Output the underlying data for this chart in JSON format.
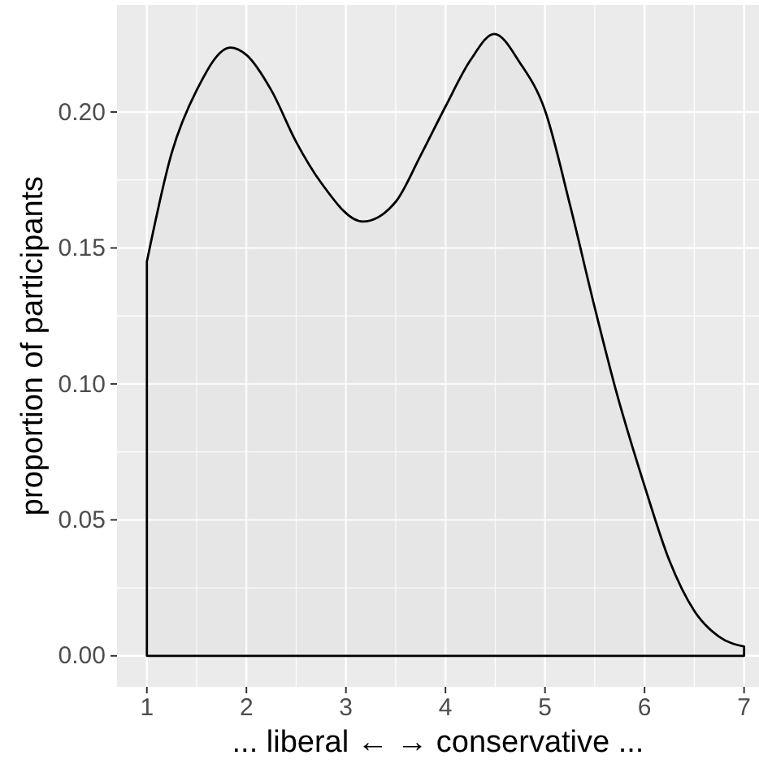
{
  "chart_data": {
    "type": "area",
    "xlabel": "... liberal ← → conservative ...",
    "ylabel": "proportion of participants",
    "x": [
      1,
      1.25,
      1.5,
      1.84,
      2,
      2.25,
      2.5,
      2.75,
      3.17,
      3.5,
      3.75,
      4,
      4.25,
      4.49,
      4.75,
      5,
      5.25,
      5.5,
      5.71,
      6,
      6.25,
      6.5,
      6.75,
      7
    ],
    "series": [
      {
        "color": "#000000",
        "values": [
          0.145,
          0.185,
          0.208,
          0.2237,
          0.221,
          0.208,
          0.189,
          0.174,
          0.1597,
          0.167,
          0.184,
          0.202,
          0.219,
          0.2287,
          0.218,
          0.2006,
          0.166,
          0.128,
          0.098,
          0.0625,
          0.035,
          0.0165,
          0.007,
          0.0034
        ]
      }
    ],
    "xlim": [
      0.7,
      7.15
    ],
    "xticks": [
      1,
      2,
      3,
      4,
      5,
      6,
      7
    ],
    "ylim": [
      -0.0114,
      0.2394
    ],
    "yticks": [
      {
        "value": 0,
        "label": "0.00"
      },
      {
        "value": 0.05,
        "label": "0.05"
      },
      {
        "value": 0.1,
        "label": "0.10"
      },
      {
        "value": 0.15,
        "label": "0.15"
      },
      {
        "value": 0.2,
        "label": "0.20"
      }
    ],
    "grid": true
  }
}
